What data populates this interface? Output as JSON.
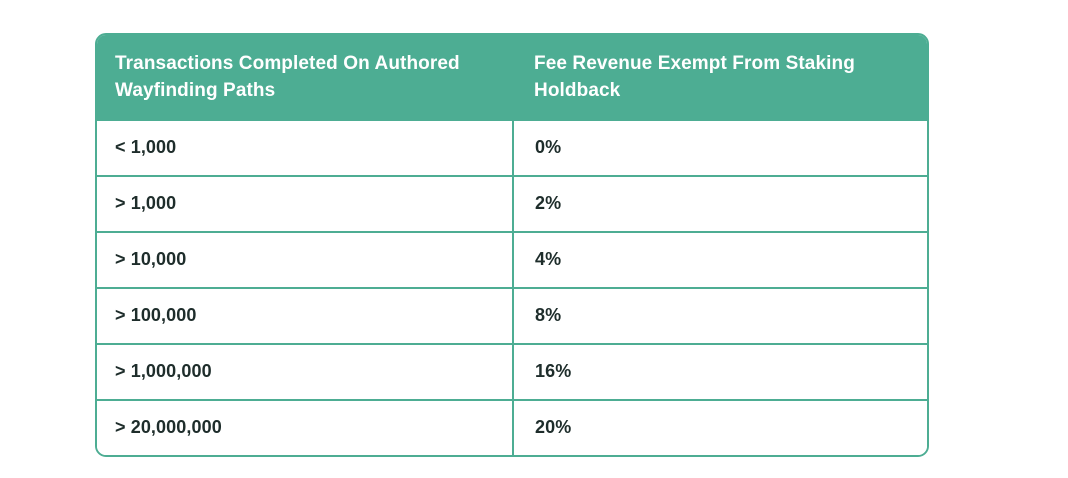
{
  "colors": {
    "accent_teal": "#4DAD93",
    "header_text": "#FFFFFF",
    "body_text": "#1E2D2B",
    "row_background": "#FFFFFF",
    "page_background": "#FFFFFF"
  },
  "table": {
    "columns": [
      {
        "label": "Transactions Completed On Authored Wayfinding Paths"
      },
      {
        "label": "Fee Revenue Exempt From Staking Holdback"
      }
    ],
    "rows": [
      {
        "threshold": "< 1,000",
        "exempt": "0%"
      },
      {
        "threshold": "> 1,000",
        "exempt": "2%"
      },
      {
        "threshold": "> 10,000",
        "exempt": "4%"
      },
      {
        "threshold": "> 100,000",
        "exempt": "8%"
      },
      {
        "threshold": "> 1,000,000",
        "exempt": "16%"
      },
      {
        "threshold": "> 20,000,000",
        "exempt": "20%"
      }
    ]
  },
  "chart_data": {
    "type": "table",
    "title": "",
    "columns": [
      "Transactions Completed On Authored Wayfinding Paths",
      "Fee Revenue Exempt From Staking Holdback"
    ],
    "rows": [
      [
        "< 1,000",
        "0%"
      ],
      [
        "> 1,000",
        "2%"
      ],
      [
        "> 10,000",
        "4%"
      ],
      [
        "> 100,000",
        "8%"
      ],
      [
        "> 1,000,000",
        "16%"
      ],
      [
        "> 20,000,000",
        "20%"
      ]
    ]
  }
}
